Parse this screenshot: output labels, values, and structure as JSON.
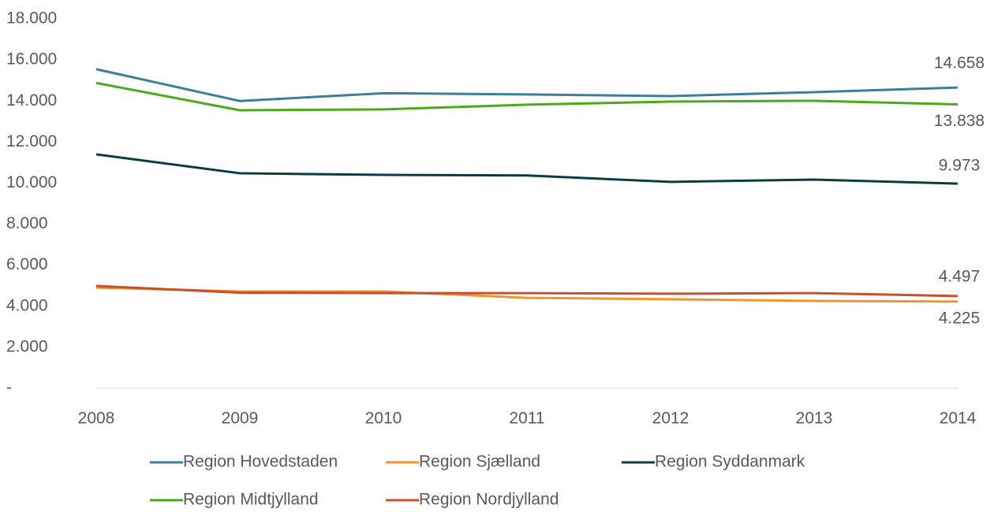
{
  "chart_data": {
    "type": "line",
    "categories": [
      "2008",
      "2009",
      "2010",
      "2011",
      "2012",
      "2013",
      "2014"
    ],
    "series": [
      {
        "name": "Region Hovedstaden",
        "color": "#3d7f99",
        "values": [
          15550,
          14000,
          14380,
          14320,
          14240,
          14430,
          14658
        ],
        "value_labels": [
          null,
          null,
          null,
          null,
          null,
          null,
          "14.658"
        ]
      },
      {
        "name": "Region Sjælland",
        "color": "#f0962e",
        "values": [
          4910,
          4720,
          4720,
          4410,
          4340,
          4260,
          4225
        ],
        "value_labels": [
          null,
          null,
          null,
          null,
          null,
          null,
          "4.225"
        ]
      },
      {
        "name": "Region Syddanmark",
        "color": "#0b3c44",
        "values": [
          11400,
          10480,
          10400,
          10370,
          10060,
          10170,
          9973
        ],
        "value_labels": [
          null,
          null,
          null,
          null,
          null,
          null,
          "9.973"
        ]
      },
      {
        "name": "Region Midtjylland",
        "color": "#4aaa19",
        "values": [
          14880,
          13550,
          13590,
          13820,
          13970,
          14010,
          13838
        ],
        "value_labels": [
          null,
          null,
          null,
          null,
          null,
          null,
          "13.838"
        ]
      },
      {
        "name": "Region Nordjylland",
        "color": "#c8502c",
        "values": [
          4990,
          4660,
          4640,
          4640,
          4610,
          4640,
          4497
        ],
        "value_labels": [
          null,
          null,
          null,
          null,
          null,
          null,
          "4.497"
        ]
      }
    ],
    "ylim": [
      0,
      18000
    ],
    "yticks": [
      {
        "value": 0,
        "label": "-"
      },
      {
        "value": 2000,
        "label": "2.000"
      },
      {
        "value": 4000,
        "label": "4.000"
      },
      {
        "value": 6000,
        "label": "6.000"
      },
      {
        "value": 8000,
        "label": "8.000"
      },
      {
        "value": 10000,
        "label": "10.000"
      },
      {
        "value": 12000,
        "label": "12.000"
      },
      {
        "value": 14000,
        "label": "14.000"
      },
      {
        "value": 16000,
        "label": "16.000"
      },
      {
        "value": 18000,
        "label": "18.000"
      }
    ],
    "grid": false
  }
}
